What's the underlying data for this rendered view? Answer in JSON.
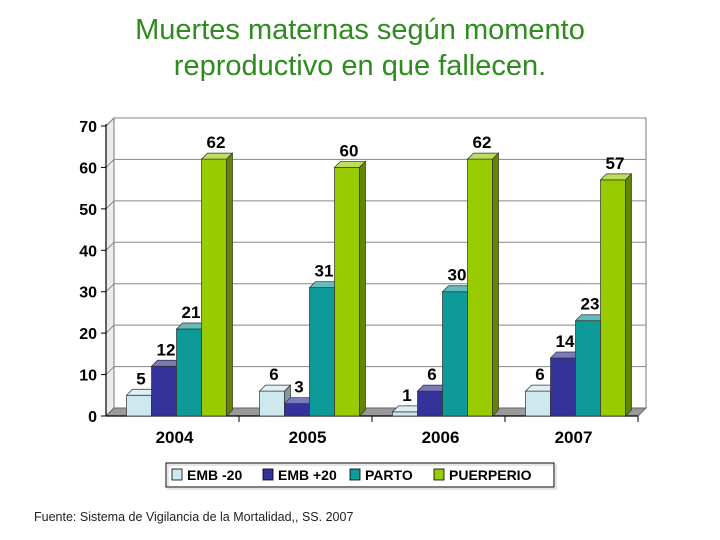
{
  "title": {
    "line1": "Muertes maternas según momento",
    "line2": "reproductivo en que fallecen."
  },
  "chart_data": {
    "type": "bar",
    "title": "Muertes maternas según momento reproductivo en que fallecen.",
    "categories": [
      "2004",
      "2005",
      "2006",
      "2007"
    ],
    "series": [
      {
        "name": "EMB -20",
        "values": [
          5,
          6,
          1,
          6
        ],
        "color": "#cde8ee"
      },
      {
        "name": "EMB +20",
        "values": [
          12,
          3,
          6,
          14
        ],
        "color": "#333399"
      },
      {
        "name": "PARTO",
        "values": [
          21,
          31,
          30,
          23
        ],
        "color": "#0f9a9a"
      },
      {
        "name": "PUERPERIO",
        "values": [
          62,
          60,
          62,
          57
        ],
        "color": "#99cc00"
      }
    ],
    "ylim": [
      0,
      70
    ],
    "yticks": [
      0,
      10,
      20,
      30,
      40,
      50,
      60,
      70
    ],
    "grid": true,
    "legend": "bottom",
    "xlabel": "",
    "ylabel": ""
  },
  "source": "Fuente: Sistema de Vigilancia de la Mortalidad,, SS. 2007"
}
